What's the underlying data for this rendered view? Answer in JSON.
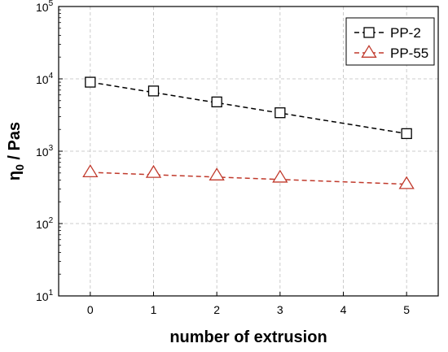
{
  "chart_data": {
    "type": "line",
    "xlabel": "number of extrusion",
    "ylabel_main": "η",
    "ylabel_sub": "0",
    "ylabel_rest": " / Pas",
    "x_ticks": [
      0,
      1,
      2,
      3,
      4,
      5
    ],
    "y_scale": "log",
    "ylim": [
      10,
      100000
    ],
    "y_ticks": [
      {
        "base": "10",
        "exp": "1"
      },
      {
        "base": "10",
        "exp": "2"
      },
      {
        "base": "10",
        "exp": "3"
      },
      {
        "base": "10",
        "exp": "4"
      },
      {
        "base": "10",
        "exp": "5"
      }
    ],
    "xlim": [
      -0.5,
      5.5
    ],
    "grid": true,
    "legend_position": "top-right",
    "series": [
      {
        "name": "PP-2",
        "marker": "square",
        "color": "#000000",
        "line_style": "dashed",
        "x": [
          0,
          1,
          2,
          3,
          5
        ],
        "values": [
          9000,
          6800,
          4800,
          3400,
          1750
        ]
      },
      {
        "name": "PP-55",
        "marker": "triangle",
        "color": "#c0392b",
        "line_style": "dashed",
        "x": [
          0,
          1,
          2,
          3,
          5
        ],
        "values": [
          510,
          500,
          460,
          430,
          350
        ]
      }
    ]
  }
}
